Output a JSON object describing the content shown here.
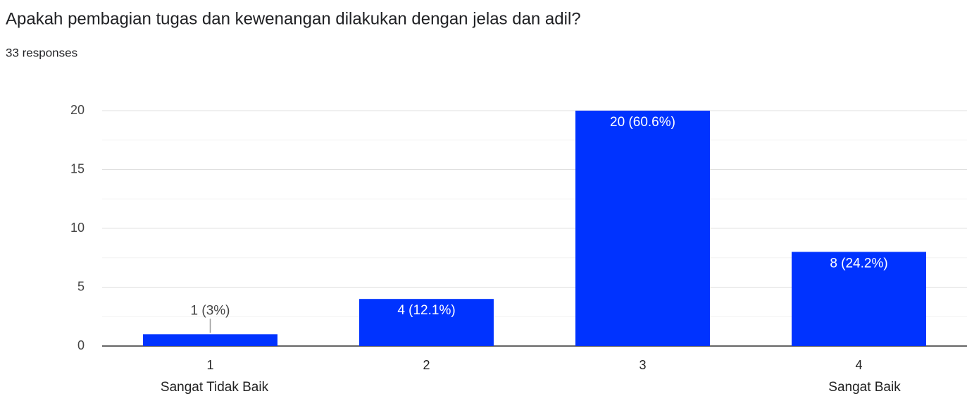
{
  "chart_data": {
    "type": "bar",
    "title": "Apakah pembagian tugas dan kewenangan dilakukan dengan jelas dan adil?",
    "subtitle": "33 responses",
    "categories": [
      "1",
      "2",
      "3",
      "4"
    ],
    "category_descriptions": [
      "Sangat Tidak Baik",
      null,
      null,
      "Sangat Baik"
    ],
    "values": [
      1,
      4,
      20,
      8
    ],
    "value_labels": [
      "1 (3%)",
      "4 (12.1%)",
      "20 (60.6%)",
      "8 (24.2%)"
    ],
    "color": "#0033ff",
    "ylim": [
      0,
      20
    ],
    "yticks": [
      0,
      5,
      10,
      15,
      20
    ],
    "grid": true,
    "minor_grid": true
  }
}
